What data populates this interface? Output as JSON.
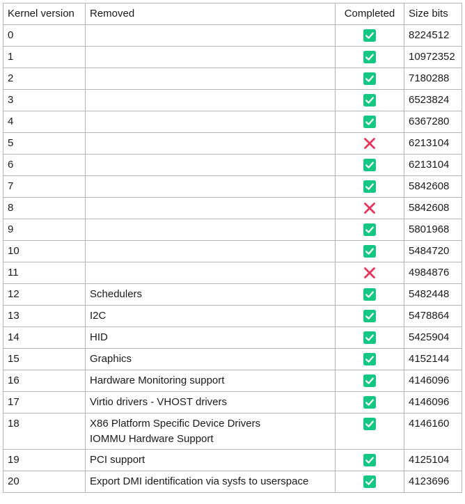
{
  "table": {
    "headers": [
      "Kernel version",
      "Removed",
      "Completed",
      "Size bits"
    ],
    "colors": {
      "ok": "#16c784",
      "fail": "#e8335a"
    },
    "rows": [
      {
        "version": "0",
        "removed": [],
        "completed": true,
        "size": "8224512"
      },
      {
        "version": "1",
        "removed": [],
        "completed": true,
        "size": "10972352"
      },
      {
        "version": "2",
        "removed": [],
        "completed": true,
        "size": "7180288"
      },
      {
        "version": "3",
        "removed": [],
        "completed": true,
        "size": "6523824"
      },
      {
        "version": "4",
        "removed": [],
        "completed": true,
        "size": "6367280"
      },
      {
        "version": "5",
        "removed": [],
        "completed": false,
        "size": "6213104"
      },
      {
        "version": "6",
        "removed": [],
        "completed": true,
        "size": "6213104"
      },
      {
        "version": "7",
        "removed": [],
        "completed": true,
        "size": "5842608"
      },
      {
        "version": "8",
        "removed": [],
        "completed": false,
        "size": "5842608"
      },
      {
        "version": "9",
        "removed": [],
        "completed": true,
        "size": "5801968"
      },
      {
        "version": "10",
        "removed": [],
        "completed": true,
        "size": "5484720"
      },
      {
        "version": "11",
        "removed": [],
        "completed": false,
        "size": "4984876"
      },
      {
        "version": "12",
        "removed": [
          "Schedulers"
        ],
        "completed": true,
        "size": "5482448"
      },
      {
        "version": "13",
        "removed": [
          "I2C"
        ],
        "completed": true,
        "size": "5478864"
      },
      {
        "version": "14",
        "removed": [
          "HID"
        ],
        "completed": true,
        "size": "5425904"
      },
      {
        "version": "15",
        "removed": [
          "Graphics"
        ],
        "completed": true,
        "size": "4152144"
      },
      {
        "version": "16",
        "removed": [
          "Hardware Monitoring support"
        ],
        "completed": true,
        "size": "4146096"
      },
      {
        "version": "17",
        "removed": [
          "Virtio drivers - VHOST drivers"
        ],
        "completed": true,
        "size": "4146096"
      },
      {
        "version": "18",
        "removed": [
          "X86 Platform Specific Device Drivers",
          "IOMMU Hardware Support"
        ],
        "completed": true,
        "size": "4146160"
      },
      {
        "version": "19",
        "removed": [
          "PCI support"
        ],
        "completed": true,
        "size": "4125104"
      },
      {
        "version": "20",
        "removed": [
          "Export DMI identification via sysfs to userspace"
        ],
        "completed": true,
        "size": "4123696"
      }
    ]
  }
}
